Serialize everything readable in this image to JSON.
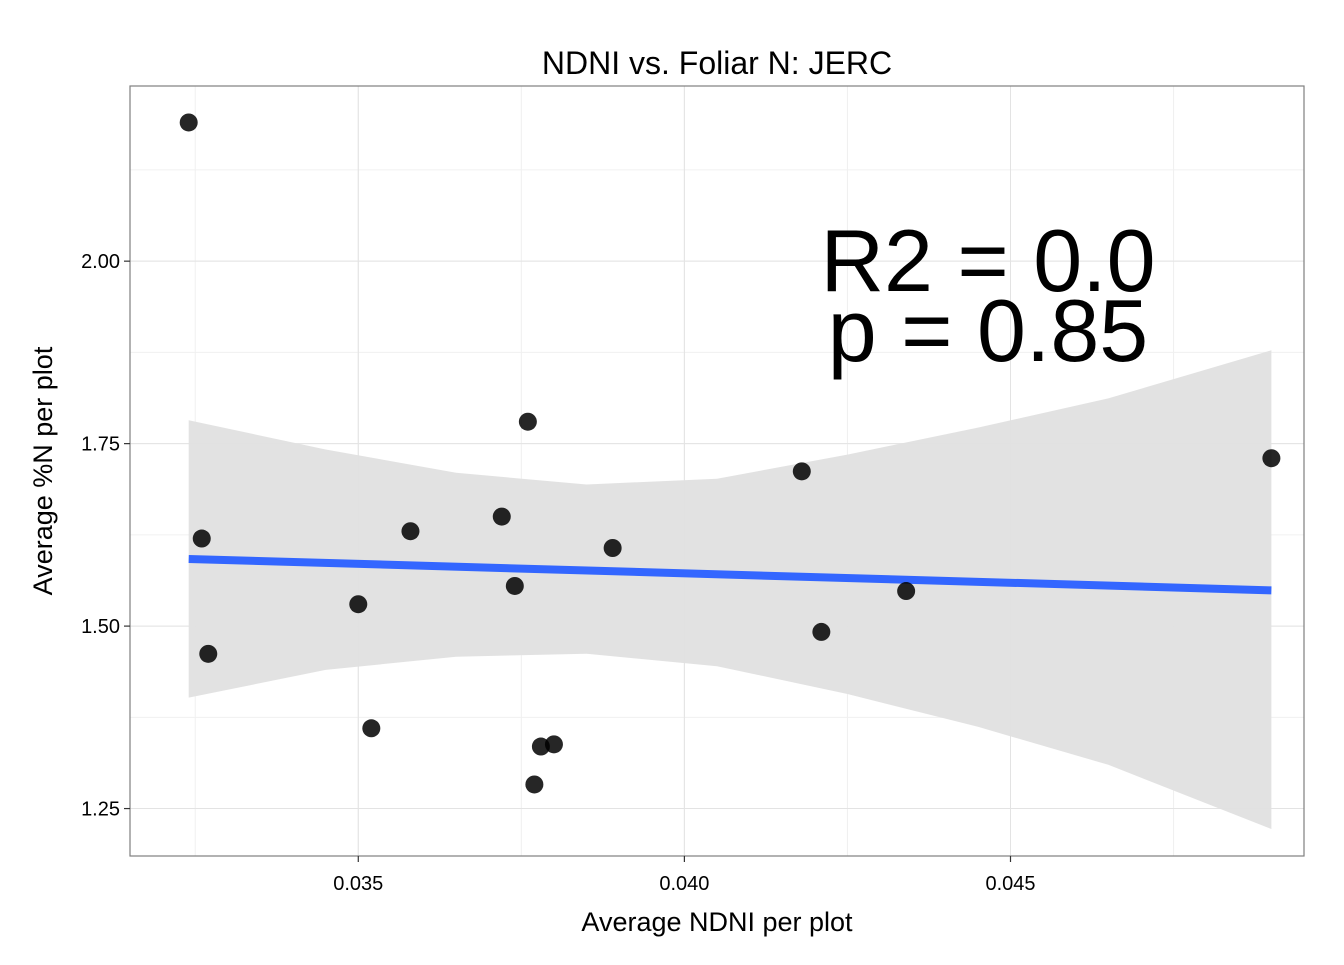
{
  "chart_data": {
    "type": "scatter",
    "title": "NDNI vs. Foliar N: JERC",
    "xlabel": "Average NDNI per plot",
    "ylabel": "Average %N per plot",
    "xlim": [
      0.0315,
      0.0495
    ],
    "ylim": [
      1.185,
      2.24
    ],
    "x_ticks": [
      0.035,
      0.04,
      0.045
    ],
    "x_tick_labels": [
      "0.035",
      "0.040",
      "0.045"
    ],
    "y_ticks": [
      1.25,
      1.5,
      1.75,
      2.0
    ],
    "y_tick_labels": [
      "1.25",
      "1.50",
      "1.75",
      "2.00"
    ],
    "grid": true,
    "points": [
      {
        "x": 0.0324,
        "y": 2.19
      },
      {
        "x": 0.0326,
        "y": 1.62
      },
      {
        "x": 0.0327,
        "y": 1.462
      },
      {
        "x": 0.035,
        "y": 1.53
      },
      {
        "x": 0.0352,
        "y": 1.36
      },
      {
        "x": 0.0358,
        "y": 1.63
      },
      {
        "x": 0.0372,
        "y": 1.65
      },
      {
        "x": 0.0374,
        "y": 1.555
      },
      {
        "x": 0.0376,
        "y": 1.78
      },
      {
        "x": 0.0377,
        "y": 1.283
      },
      {
        "x": 0.0378,
        "y": 1.335
      },
      {
        "x": 0.038,
        "y": 1.338
      },
      {
        "x": 0.0389,
        "y": 1.607
      },
      {
        "x": 0.0418,
        "y": 1.712
      },
      {
        "x": 0.0421,
        "y": 1.492
      },
      {
        "x": 0.0434,
        "y": 1.548
      },
      {
        "x": 0.049,
        "y": 1.73
      }
    ],
    "fit_line": {
      "x": [
        0.0324,
        0.049
      ],
      "y": [
        1.592,
        1.549
      ],
      "color": "#3366ff"
    },
    "confidence_band": {
      "x": [
        0.0324,
        0.0345,
        0.0365,
        0.0385,
        0.0405,
        0.0425,
        0.0445,
        0.0465,
        0.049
      ],
      "upper": [
        1.782,
        1.742,
        1.71,
        1.694,
        1.702,
        1.735,
        1.772,
        1.812,
        1.878
      ],
      "lower": [
        1.402,
        1.44,
        1.458,
        1.462,
        1.445,
        1.407,
        1.362,
        1.31,
        1.222
      ],
      "color": "#e0e0e0"
    },
    "annotations": [
      "R2 = 0.0",
      "p = 0.85"
    ],
    "point_color": "#000000"
  }
}
